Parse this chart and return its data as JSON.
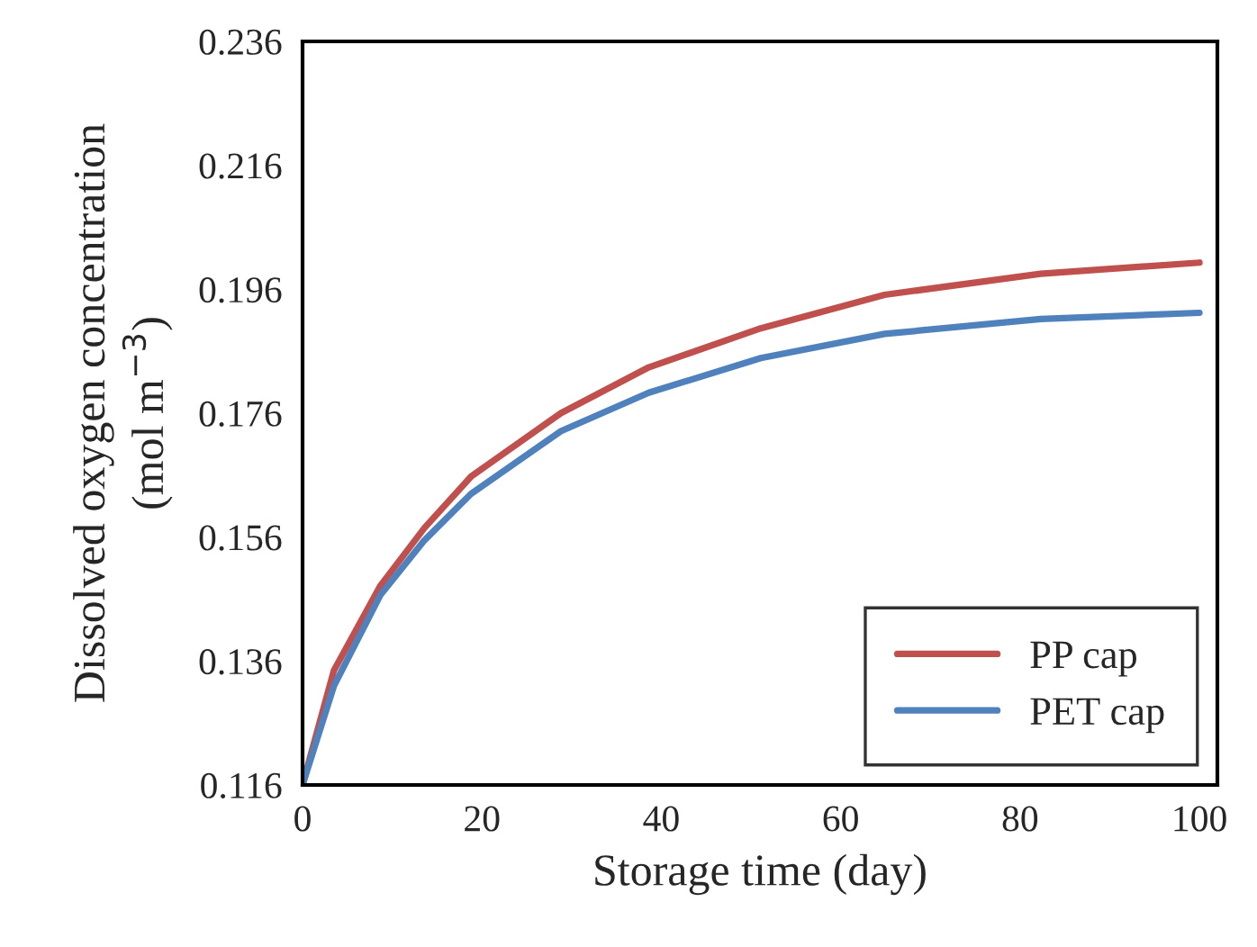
{
  "chart_data": {
    "type": "line",
    "xlabel": "Storage time (day)",
    "ylabel": "Dissolved oxygen concentration\n(mol m$^{−3}$)",
    "x": [
      0,
      3.5,
      8.7,
      13.6,
      18.8,
      28.8,
      38.6,
      51.1,
      64.9,
      82.3,
      100
    ],
    "series": [
      {
        "name": "PP cap",
        "color": "#c0504d",
        "values": [
          0.116,
          0.1345,
          0.1482,
          0.1575,
          0.1658,
          0.176,
          0.1834,
          0.1897,
          0.1951,
          0.1985,
          0.2003
        ]
      },
      {
        "name": "PET cap",
        "color": "#4f81bd",
        "values": [
          0.116,
          0.132,
          0.1467,
          0.1555,
          0.163,
          0.1731,
          0.1793,
          0.1849,
          0.1888,
          0.1912,
          0.1922
        ]
      }
    ],
    "xlim": [
      0,
      102
    ],
    "xticks": [
      0,
      20,
      40,
      60,
      80,
      100
    ],
    "ylim": [
      0.116,
      0.236
    ],
    "yticks": [
      0.116,
      0.136,
      0.156,
      0.176,
      0.196,
      0.216,
      0.236
    ],
    "grid": false,
    "legend": "bottom right",
    "marker": "none",
    "line_style": "solid"
  }
}
